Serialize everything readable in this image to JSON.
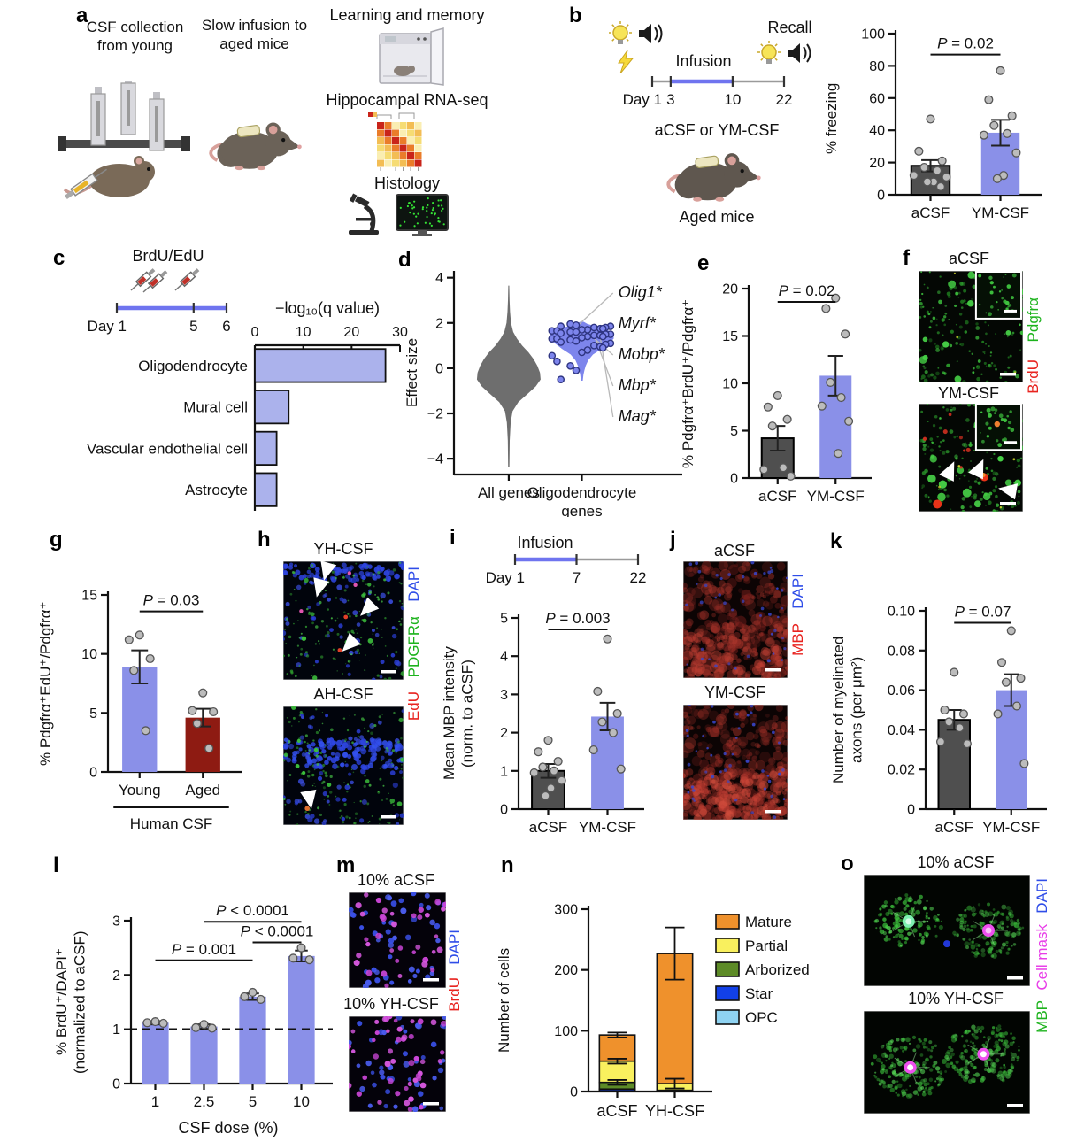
{
  "figure": {
    "panel_letters": {
      "a": "a",
      "b": "b",
      "c": "c",
      "d": "d",
      "e": "e",
      "f": "f",
      "g": "g",
      "h": "h",
      "i": "i",
      "j": "j",
      "k": "k",
      "l": "l",
      "m": "m",
      "n": "n",
      "o": "o"
    },
    "panels": {
      "a": {
        "caption_csf": "CSF collection from young",
        "caption_infusion": "Slow infusion to aged mice",
        "item_learning": "Learning and memory",
        "item_rnaseq": "Hippocampal RNA-seq",
        "item_histology": "Histology"
      },
      "b": {
        "infusion_label": "Infusion",
        "recall_label": "Recall",
        "treatment_label": "aCSF or YM-CSF",
        "subject_label": "Aged mice",
        "timeline": {
          "points": [
            {
              "label": "Day 1",
              "t": 0
            },
            {
              "label": "3",
              "t": 0.14
            },
            {
              "label": "10",
              "t": 0.61
            },
            {
              "label": "22",
              "t": 1
            }
          ],
          "segments": [
            {
              "t1": 0,
              "t2": 1,
              "color": "#9a9a9a"
            },
            {
              "t1": 0.14,
              "t2": 0.61,
              "color": "#6f74ef"
            }
          ]
        },
        "chart_data": {
          "type": "bar",
          "categories": [
            "aCSF",
            "YM-CSF"
          ],
          "values": [
            18,
            38.5
          ],
          "errors": [
            3.5,
            8
          ],
          "bar_colors": [
            "#4f4f4f",
            "#8a90e8"
          ],
          "points": [
            [
              47,
              27,
              21,
              17,
              15,
              12,
              11,
              8,
              8,
              5
            ],
            [
              77,
              59,
              49,
              43,
              38,
              37,
              26,
              12,
              10
            ]
          ],
          "ylabel": "% freezing",
          "ylim": [
            0,
            100
          ],
          "yticks": [
            0,
            20,
            40,
            60,
            80,
            100
          ],
          "pvalues": [
            {
              "text": "P = 0.02",
              "from": 0,
              "to": 1,
              "y": 87
            }
          ]
        }
      },
      "c": {
        "brdu_label": "BrdU/EdU",
        "timeline": {
          "points": [
            {
              "label": "Day 1",
              "t": 0
            },
            {
              "label": "5",
              "t": 0.7
            },
            {
              "label": "6",
              "t": 1
            }
          ],
          "segments": [
            {
              "t1": 0,
              "t2": 1,
              "color": "#9a9a9a"
            },
            {
              "t1": 0,
              "t2": 1,
              "color": "#6f74ef"
            }
          ]
        },
        "chart_data": {
          "type": "hbar",
          "title": "−log₁₀(q value)",
          "categories": [
            "Oligodendrocyte",
            "Mural cell",
            "Vascular endothelial cell",
            "Astrocyte"
          ],
          "values": [
            27,
            7,
            4.5,
            4.5
          ],
          "xlim": [
            0,
            30
          ],
          "xticks": [
            0,
            10,
            20,
            30
          ],
          "bar_color": "#abb2ec"
        }
      },
      "d": {
        "chart_data": {
          "type": "violin",
          "ylabel": "Effect size",
          "ylim": [
            -4.7,
            4.3
          ],
          "yticks": [
            -4,
            -2,
            0,
            2,
            4
          ],
          "ytick_labels": [
            "−4",
            "−2",
            "0",
            "2",
            "4"
          ],
          "groups": [
            {
              "label": "All genes",
              "color": "#6e6e6e",
              "profile": [
                [
                  -4.35,
                  0.02
                ],
                [
                  -3.2,
                  0.03
                ],
                [
                  -2.4,
                  0.06
                ],
                [
                  -1.9,
                  0.12
                ],
                [
                  -1.5,
                  0.3
                ],
                [
                  -1.1,
                  0.62
                ],
                [
                  -0.8,
                  0.85
                ],
                [
                  -0.5,
                  1.0
                ],
                [
                  -0.2,
                  0.98
                ],
                [
                  0.1,
                  0.9
                ],
                [
                  0.4,
                  0.78
                ],
                [
                  0.7,
                  0.62
                ],
                [
                  1.0,
                  0.42
                ],
                [
                  1.3,
                  0.26
                ],
                [
                  1.6,
                  0.14
                ],
                [
                  2.0,
                  0.07
                ],
                [
                  2.5,
                  0.04
                ],
                [
                  3.0,
                  0.025
                ],
                [
                  3.65,
                  0.015
                ]
              ]
            },
            {
              "label": "Oligodendrocyte\ngenes",
              "color": "#7d85ec",
              "profile": [
                [
                  -0.55,
                  0.03
                ],
                [
                  -0.3,
                  0.05
                ],
                [
                  -0.1,
                  0.08
                ],
                [
                  0.1,
                  0.12
                ],
                [
                  0.35,
                  0.2
                ],
                [
                  0.6,
                  0.35
                ],
                [
                  0.85,
                  0.62
                ],
                [
                  1.1,
                  0.85
                ],
                [
                  1.3,
                  1.0
                ],
                [
                  1.5,
                  1.0
                ],
                [
                  1.7,
                  0.8
                ],
                [
                  1.85,
                  0.45
                ],
                [
                  1.95,
                  0.18
                ],
                [
                  2.05,
                  0.06
                ]
              ],
              "points": [
                1.95,
                1.9,
                1.85,
                1.85,
                1.8,
                1.8,
                1.75,
                1.75,
                1.7,
                1.7,
                1.65,
                1.65,
                1.6,
                1.6,
                1.55,
                1.5,
                1.5,
                1.45,
                1.45,
                1.4,
                1.4,
                1.35,
                1.3,
                1.3,
                1.25,
                1.2,
                1.15,
                1.1,
                1.05,
                1.0,
                0.95,
                0.9,
                0.8,
                0.7,
                0.55,
                0.3,
                0.1,
                -0.1,
                -0.5
              ]
            }
          ],
          "gene_labels": [
            "Olig1*",
            "Myrf*",
            "Mobp*",
            "Mbp*",
            "Mag*"
          ]
        }
      },
      "e": {
        "chart_data": {
          "type": "bar",
          "categories": [
            "aCSF",
            "YM-CSF"
          ],
          "values": [
            4.2,
            10.8
          ],
          "errors": [
            1.3,
            2.1
          ],
          "bar_colors": [
            "#4f4f4f",
            "#8a90e8"
          ],
          "points": [
            [
              8.7,
              7.5,
              6.2,
              5.5,
              1.1,
              0.9,
              0.2
            ],
            [
              19,
              17.9,
              15.2,
              10.1,
              8.5,
              7.6,
              6,
              2.6
            ]
          ],
          "ylabel": "% Pdgfrα⁺BrdU⁺/Pdgfrα⁺",
          "ylim": [
            0,
            20
          ],
          "yticks": [
            0,
            5,
            10,
            15,
            20
          ],
          "pvalues": [
            {
              "text": "P = 0.02",
              "from": 0,
              "to": 1,
              "y": 18.6
            }
          ]
        }
      },
      "f": {
        "images": [
          {
            "title": "aCSF"
          },
          {
            "title": "YM-CSF"
          }
        ],
        "stains": [
          {
            "name": "Pdgfrα",
            "color": "#1db31d"
          },
          {
            "name": "BrdU",
            "color": "#e8231f"
          }
        ]
      },
      "g": {
        "chart_data": {
          "type": "bar",
          "categories": [
            "Young",
            "Aged"
          ],
          "values": [
            8.9,
            4.6
          ],
          "errors": [
            1.4,
            0.75
          ],
          "bar_colors": [
            "#8a90e8",
            "#8e1b12"
          ],
          "points": [
            [
              11.6,
              11.2,
              9.6,
              8.6,
              3.5
            ],
            [
              6.7,
              5.2,
              5.1,
              4.1,
              2.0
            ]
          ],
          "ylabel": "% Pdgfrα⁺EdU⁺/Pdgfrα⁺",
          "ylim": [
            0,
            15
          ],
          "yticks": [
            0,
            5,
            10,
            15
          ],
          "pvalues": [
            {
              "text": "P = 0.03",
              "from": 0,
              "to": 1,
              "y": 13.6
            }
          ],
          "group_label": "Human CSF"
        }
      },
      "h": {
        "images": [
          {
            "title": "YH-CSF"
          },
          {
            "title": "AH-CSF"
          }
        ],
        "stains": [
          {
            "name": "DAPI",
            "color": "#2f4de8"
          },
          {
            "name": "PDGFRα",
            "color": "#1db31d"
          },
          {
            "name": "EdU",
            "color": "#e8231f"
          }
        ]
      },
      "i": {
        "infusion_label": "Infusion",
        "timeline": {
          "points": [
            {
              "label": "Day 1",
              "t": 0
            },
            {
              "label": "7",
              "t": 0.5
            },
            {
              "label": "22",
              "t": 1
            }
          ],
          "segments": [
            {
              "t1": 0,
              "t2": 1,
              "color": "#9a9a9a"
            },
            {
              "t1": 0,
              "t2": 0.5,
              "color": "#6f74ef"
            }
          ]
        },
        "chart_data": {
          "type": "bar",
          "categories": [
            "aCSF",
            "YM-CSF"
          ],
          "values": [
            1.0,
            2.42
          ],
          "errors": [
            0.18,
            0.36
          ],
          "bar_colors": [
            "#4f4f4f",
            "#8a90e8"
          ],
          "points": [
            [
              1.8,
              1.5,
              1.25,
              1.1,
              1.0,
              0.95,
              0.75,
              0.55,
              0.35
            ],
            [
              4.45,
              3.08,
              2.5,
              2.28,
              2.0,
              1.55,
              1.05
            ]
          ],
          "ylabel": "Mean MBP intensity\n(norm. to aCSF)",
          "ylim": [
            0,
            5
          ],
          "yticks": [
            0,
            1,
            2,
            3,
            4,
            5
          ],
          "pvalues": [
            {
              "text": "P = 0.003",
              "from": 0,
              "to": 1,
              "y": 4.7
            }
          ]
        }
      },
      "j": {
        "images": [
          {
            "title": "aCSF"
          },
          {
            "title": "YM-CSF"
          }
        ],
        "stains": [
          {
            "name": "DAPI",
            "color": "#2f4de8"
          },
          {
            "name": "MBP",
            "color": "#e8231f"
          }
        ]
      },
      "k": {
        "chart_data": {
          "type": "bar",
          "categories": [
            "aCSF",
            "YM-CSF"
          ],
          "values": [
            0.045,
            0.06
          ],
          "errors": [
            0.005,
            0.008
          ],
          "bar_colors": [
            "#4f4f4f",
            "#8a90e8"
          ],
          "points": [
            [
              0.069,
              0.05,
              0.048,
              0.044,
              0.041,
              0.034,
              0.033
            ],
            [
              0.09,
              0.074,
              0.066,
              0.064,
              0.052,
              0.048,
              0.023
            ]
          ],
          "ylabel": "Number of myelinated\naxons (per μm²)",
          "ylim": [
            0,
            0.1
          ],
          "yticks": [
            0,
            0.02,
            0.04,
            0.06,
            0.08,
            0.1
          ],
          "ytick_labels": [
            "0",
            "0.02",
            "0.04",
            "0.06",
            "0.08",
            "0.10"
          ],
          "pvalues": [
            {
              "text": "P = 0.07",
              "from": 0,
              "to": 1,
              "y": 0.094
            }
          ]
        }
      },
      "l": {
        "chart_data": {
          "type": "bar",
          "categories": [
            "1",
            "2.5",
            "5",
            "10"
          ],
          "values": [
            1.12,
            1.05,
            1.6,
            2.35
          ],
          "errors": [
            0.03,
            0.04,
            0.06,
            0.1
          ],
          "bar_colors": [
            "#8a90e8",
            "#8a90e8",
            "#8a90e8",
            "#8a90e8"
          ],
          "points": [
            [
              1.14,
              1.12,
              1.11
            ],
            [
              1.09,
              1.03,
              1.02
            ],
            [
              1.68,
              1.6,
              1.55
            ],
            [
              2.5,
              2.31,
              2.28
            ]
          ],
          "ylabel": "% BrdU⁺/DAPI⁺\n(normalized to aCSF)",
          "xlabel": "CSF dose (%)",
          "ylim": [
            0,
            3
          ],
          "yticks": [
            0,
            1,
            2,
            3
          ],
          "dashed_y": 1,
          "pvalues": [
            {
              "text": "P = 0.001",
              "from": 0,
              "to": 2,
              "y": 2.27
            },
            {
              "text": "P < 0.0001",
              "from": 1,
              "to": 3,
              "y": 2.98
            },
            {
              "text": "P < 0.0001",
              "from": 2,
              "to": 3,
              "y": 2.6
            }
          ]
        }
      },
      "m": {
        "images": [
          {
            "title": "10% aCSF"
          },
          {
            "title": "10% YH-CSF"
          }
        ],
        "stains": [
          {
            "name": "DAPI",
            "color": "#2f4de8"
          },
          {
            "name": "BrdU",
            "color": "#e8231f"
          }
        ]
      },
      "n": {
        "chart_data": {
          "type": "stacked_bar",
          "categories": [
            "aCSF",
            "YH-CSF"
          ],
          "ylabel": "Number of cells",
          "ylim": [
            0,
            300
          ],
          "yticks": [
            0,
            100,
            200,
            300
          ],
          "series": [
            {
              "name": "Mature",
              "color": "#ef912c",
              "values": [
                43,
                214
              ]
            },
            {
              "name": "Partial",
              "color": "#f9f05e",
              "values": [
                35,
                11
              ]
            },
            {
              "name": "Arborized",
              "color": "#5d8b27",
              "values": [
                11,
                1
              ]
            },
            {
              "name": "Star",
              "color": "#1240e8",
              "values": [
                3,
                1
              ]
            },
            {
              "name": "OPC",
              "color": "#8fd3f2",
              "values": [
                1,
                0
              ]
            }
          ],
          "seg_errors": [
            [
              {
                "at": 15,
                "err": 4
              },
              {
                "at": 50,
                "err": 4
              },
              {
                "at": 93,
                "err": 4
              }
            ],
            [
              {
                "at": 13,
                "err": 8
              },
              {
                "at": 227,
                "err": 43
              }
            ]
          ]
        }
      },
      "o": {
        "images": [
          {
            "title": "10% aCSF"
          },
          {
            "title": "10% YH-CSF"
          }
        ],
        "stains": [
          {
            "name": "DAPI",
            "color": "#2f4de8"
          },
          {
            "name": "Cell mask",
            "color": "#e83de8"
          },
          {
            "name": "MBP",
            "color": "#1db31d"
          }
        ]
      }
    }
  }
}
